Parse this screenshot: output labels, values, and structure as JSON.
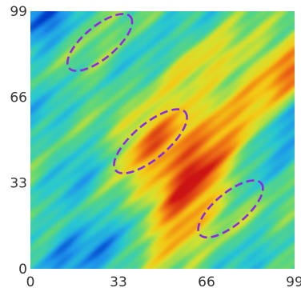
{
  "chart_data": {
    "type": "heatmap",
    "title": "",
    "xlabel": "",
    "ylabel": "",
    "xlim": [
      0,
      99
    ],
    "ylim": [
      0,
      99
    ],
    "x_ticks": [
      0,
      33,
      66,
      99
    ],
    "y_ticks": [
      0,
      33,
      66,
      99
    ],
    "x_tick_labels": [
      "0",
      "33",
      "66",
      "99"
    ],
    "y_tick_labels": [
      "0",
      "33",
      "66",
      "99"
    ],
    "colormap": "jet-like (blue low → cyan → green → yellow → orange → red high)",
    "grid": false,
    "legend": "none",
    "hotspots": [
      {
        "x": 60,
        "y": 34,
        "level": 0.97
      },
      {
        "x": 47,
        "y": 48,
        "level": 0.85
      },
      {
        "x": 73,
        "y": 56,
        "level": 0.7
      },
      {
        "x": 98,
        "y": 76,
        "level": 0.88
      },
      {
        "x": 90,
        "y": 55,
        "level": 0.62
      },
      {
        "x": 80,
        "y": 20,
        "level": 0.55
      },
      {
        "x": 55,
        "y": 14,
        "level": 0.72
      },
      {
        "x": 36,
        "y": 58,
        "level": 0.52
      },
      {
        "x": 72,
        "y": 84,
        "level": 0.58
      },
      {
        "x": 24,
        "y": 84,
        "level": 0.5
      },
      {
        "x": 58,
        "y": 78,
        "level": 0.6
      }
    ],
    "coldspots": [
      {
        "x": 6,
        "y": 96,
        "level": 0.05
      },
      {
        "x": 97,
        "y": 58,
        "level": 0.08
      },
      {
        "x": 18,
        "y": 36,
        "level": 0.22
      },
      {
        "x": 30,
        "y": 8,
        "level": 0.22
      },
      {
        "x": 12,
        "y": 4,
        "level": 0.18
      },
      {
        "x": 80,
        "y": 4,
        "level": 0.26
      },
      {
        "x": 88,
        "y": 38,
        "level": 0.28
      },
      {
        "x": 42,
        "y": 80,
        "level": 0.3
      },
      {
        "x": 3,
        "y": 60,
        "level": 0.25
      },
      {
        "x": 64,
        "y": 96,
        "level": 0.3
      }
    ],
    "annotations": [
      {
        "shape": "dashed-ellipse",
        "color": "#8a2be2",
        "center": [
          26,
          87
        ],
        "semi_axes": [
          15,
          6
        ],
        "angle_deg": 40
      },
      {
        "shape": "dashed-ellipse",
        "color": "#8a2be2",
        "center": [
          45,
          49
        ],
        "semi_axes": [
          17,
          6.5
        ],
        "angle_deg": 40
      },
      {
        "shape": "dashed-ellipse",
        "color": "#8a2be2",
        "center": [
          75,
          23
        ],
        "semi_axes": [
          15,
          6
        ],
        "angle_deg": 40
      }
    ]
  }
}
